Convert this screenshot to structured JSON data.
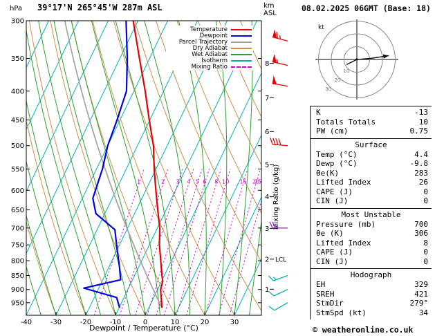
{
  "header": {
    "pressure_unit": "hPa",
    "station": "39°17'N 265°45'W 287m ASL",
    "altitude_unit_line1": "km",
    "altitude_unit_line2": "ASL",
    "datetime": "08.02.2025 06GMT (Base: 18)"
  },
  "footer": {
    "copyright": "© weatheronline.co.uk"
  },
  "colors": {
    "temperature": "#e60000",
    "dewpoint": "#0000dd",
    "parcel": "#a6a6a6",
    "dry_adiabat": "#cf8f4a",
    "wet_adiabat": "#2aa12a",
    "isotherm": "#00b2b2",
    "mixing_ratio": "#c800c8",
    "axis": "#000000"
  },
  "legend": [
    {
      "label": "Temperature",
      "color": "#e60000",
      "dash": false
    },
    {
      "label": "Dewpoint",
      "color": "#0000dd",
      "dash": false
    },
    {
      "label": "Parcel Trajectory",
      "color": "#a6a6a6",
      "dash": false
    },
    {
      "label": "Dry Adiabat",
      "color": "#cf8f4a",
      "dash": false
    },
    {
      "label": "Wet Adiabat",
      "color": "#2aa12a",
      "dash": false
    },
    {
      "label": "Isotherm",
      "color": "#00b2b2",
      "dash": false
    },
    {
      "label": "Mixing Ratio",
      "color": "#c800c8",
      "dash": true
    }
  ],
  "chart_data": {
    "type": "line",
    "subtype": "skew-t-log-p-sounding",
    "xlabel": "Dewpoint / Temperature (°C)",
    "x_ticks": [
      -40,
      -30,
      -20,
      -10,
      0,
      10,
      20,
      30
    ],
    "pressure_ticks": [
      300,
      350,
      400,
      450,
      500,
      550,
      600,
      650,
      700,
      750,
      800,
      850,
      900,
      950
    ],
    "pressure_range_hpa": [
      300,
      1000
    ],
    "km_levels": [
      {
        "km": 1,
        "hpa": 899
      },
      {
        "km": 2,
        "hpa": 795
      },
      {
        "km": 3,
        "hpa": 701
      },
      {
        "km": 4,
        "hpa": 616
      },
      {
        "km": 5,
        "hpa": 540
      },
      {
        "km": 6,
        "hpa": 472
      },
      {
        "km": 7,
        "hpa": 411
      },
      {
        "km": 8,
        "hpa": 357
      }
    ],
    "lcl": {
      "label": "LCL",
      "hpa": 795
    },
    "mixing_ratio_label": "Mixing Ratio (g/kg)",
    "mixing_ratio_lines_gkg": [
      1,
      2,
      3,
      4,
      5,
      6,
      8,
      10,
      15,
      20,
      25
    ],
    "isotherm_range_c": [
      -100,
      40
    ],
    "isotherm_step_c": 10,
    "dry_adiabats_c": [
      -40,
      -30,
      -20,
      -10,
      0,
      10,
      20,
      30,
      40,
      50,
      60,
      70,
      80,
      90,
      100,
      110,
      120,
      130,
      140
    ],
    "wet_adiabats_c": [
      -40,
      -35,
      -30,
      -25,
      -20,
      -15,
      -10,
      -5,
      0,
      5,
      10,
      15,
      20,
      25,
      30,
      35
    ],
    "temperature_profile": [
      [
        970,
        4.4
      ],
      [
        940,
        3.0
      ],
      [
        900,
        1.0
      ],
      [
        870,
        0.4
      ],
      [
        850,
        -0.8
      ],
      [
        800,
        -3.6
      ],
      [
        750,
        -6.6
      ],
      [
        700,
        -9.2
      ],
      [
        650,
        -12.8
      ],
      [
        600,
        -16.6
      ],
      [
        550,
        -20.6
      ],
      [
        500,
        -24.6
      ],
      [
        450,
        -30.2
      ],
      [
        400,
        -36.2
      ],
      [
        350,
        -43.4
      ],
      [
        300,
        -51.6
      ]
    ],
    "dewpoint_profile": [
      [
        970,
        -9.8
      ],
      [
        930,
        -12.5
      ],
      [
        895,
        -25
      ],
      [
        865,
        -14
      ],
      [
        820,
        -16.5
      ],
      [
        750,
        -21
      ],
      [
        705,
        -24
      ],
      [
        660,
        -33
      ],
      [
        620,
        -36.5
      ],
      [
        550,
        -38
      ],
      [
        500,
        -40
      ],
      [
        450,
        -41
      ],
      [
        400,
        -42.5
      ],
      [
        350,
        -47.5
      ],
      [
        300,
        -54
      ]
    ],
    "parcel": {
      "start_hpa": 970,
      "start_temp_c": 4.4
    },
    "wind_barbs": [
      {
        "hpa": 326,
        "speed_kt": 65,
        "dir_deg": 285,
        "color": "#e60000"
      },
      {
        "hpa": 360,
        "speed_kt": 55,
        "dir_deg": 283,
        "color": "#e60000"
      },
      {
        "hpa": 392,
        "speed_kt": 50,
        "dir_deg": 280,
        "color": "#e60000"
      },
      {
        "hpa": 500,
        "speed_kt": 40,
        "dir_deg": 275,
        "color": "#e60000"
      },
      {
        "hpa": 700,
        "speed_kt": 25,
        "dir_deg": 270,
        "color": "#9932cc"
      },
      {
        "hpa": 850,
        "speed_kt": 15,
        "dir_deg": 250,
        "color": "#00b2b2"
      },
      {
        "hpa": 900,
        "speed_kt": 12,
        "dir_deg": 245,
        "color": "#00b2b2"
      },
      {
        "hpa": 950,
        "speed_kt": 10,
        "dir_deg": 240,
        "color": "#00b2b2"
      }
    ],
    "hodograph": {
      "unit": "kt",
      "rings_kt": [
        10,
        20,
        30
      ],
      "trace_uv_kt": [
        [
          -8,
          -4
        ],
        [
          0,
          0
        ],
        [
          12,
          1
        ],
        [
          25,
          3
        ]
      ],
      "storm_dir_deg": 279,
      "storm_speed_kt": 34
    }
  },
  "stats": {
    "indices": [
      {
        "label": "K",
        "value": "-13"
      },
      {
        "label": "Totals Totals",
        "value": "10"
      },
      {
        "label": "PW (cm)",
        "value": "0.75"
      }
    ],
    "sections": [
      {
        "title": "Surface",
        "rows": [
          [
            "Temp (°C)",
            "4.4"
          ],
          [
            "Dewp (°C)",
            "-9.8"
          ],
          [
            "θe(K)",
            "283"
          ],
          [
            "Lifted Index",
            "26"
          ],
          [
            "CAPE (J)",
            "0"
          ],
          [
            "CIN (J)",
            "0"
          ]
        ]
      },
      {
        "title": "Most Unstable",
        "rows": [
          [
            "Pressure (mb)",
            "700"
          ],
          [
            "θe (K)",
            "306"
          ],
          [
            "Lifted Index",
            "8"
          ],
          [
            "CAPE (J)",
            "0"
          ],
          [
            "CIN (J)",
            "0"
          ]
        ]
      },
      {
        "title": "Hodograph",
        "rows": [
          [
            "EH",
            "329"
          ],
          [
            "SREH",
            "421"
          ],
          [
            "StmDir",
            "279°"
          ],
          [
            "StmSpd (kt)",
            "34"
          ]
        ]
      }
    ]
  }
}
